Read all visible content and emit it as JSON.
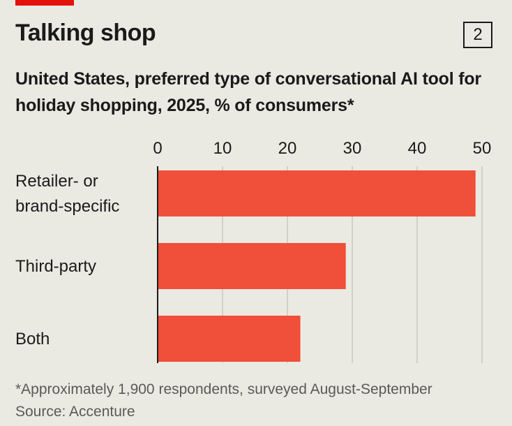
{
  "header": {
    "number": "2"
  },
  "colors": {
    "accent_tag": "#e3120b",
    "bar": "#f04f3a"
  },
  "chart_data": {
    "type": "bar",
    "orientation": "horizontal",
    "title": "Talking shop",
    "subtitle": "United States, preferred type of conversational AI tool for holiday shopping, 2025, % of consumers*",
    "categories": [
      [
        "Retailer- or",
        "brand-specific"
      ],
      [
        "Third-party"
      ],
      [
        "Both"
      ]
    ],
    "values": [
      49,
      29,
      22
    ],
    "xlim": [
      0,
      50
    ],
    "xticks": [
      "0",
      "10",
      "20",
      "30",
      "40",
      "50"
    ],
    "grid": true,
    "legend": "none"
  },
  "footnote": {
    "note": "*Approximately 1,900 respondents, surveyed August-September",
    "source": "Source: Accenture"
  }
}
